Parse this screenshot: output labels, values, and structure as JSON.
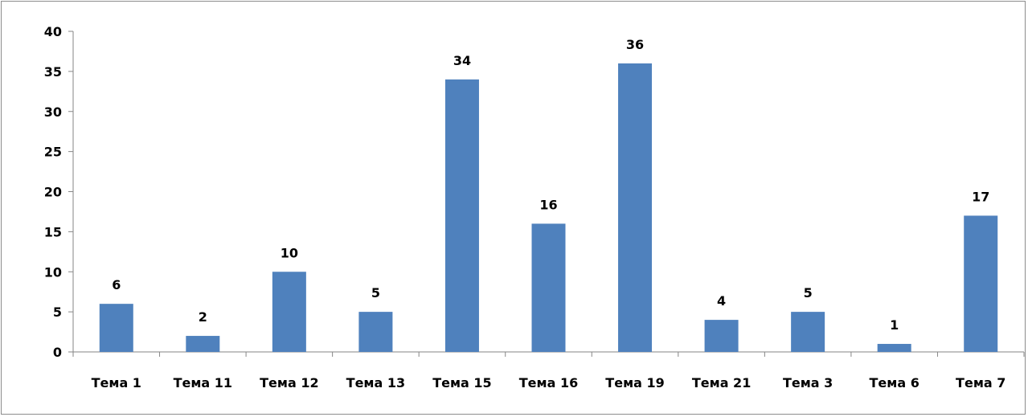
{
  "chart_data": {
    "type": "bar",
    "categories": [
      "Тема 1",
      "Тема 11",
      "Тема 12",
      "Тема 13",
      "Тема 15",
      "Тема 16",
      "Тема 19",
      "Тема 21",
      "Тема 3",
      "Тема 6",
      "Тема 7"
    ],
    "values": [
      6,
      2,
      10,
      5,
      34,
      16,
      36,
      4,
      5,
      1,
      17
    ],
    "title": "",
    "xlabel": "",
    "ylabel": "",
    "ylim": [
      0,
      40
    ],
    "yticks": [
      0,
      5,
      10,
      15,
      20,
      25,
      30,
      35,
      40
    ],
    "grid": false,
    "legend": "none",
    "data_labels": true,
    "bar_color": "#4f81bd"
  }
}
